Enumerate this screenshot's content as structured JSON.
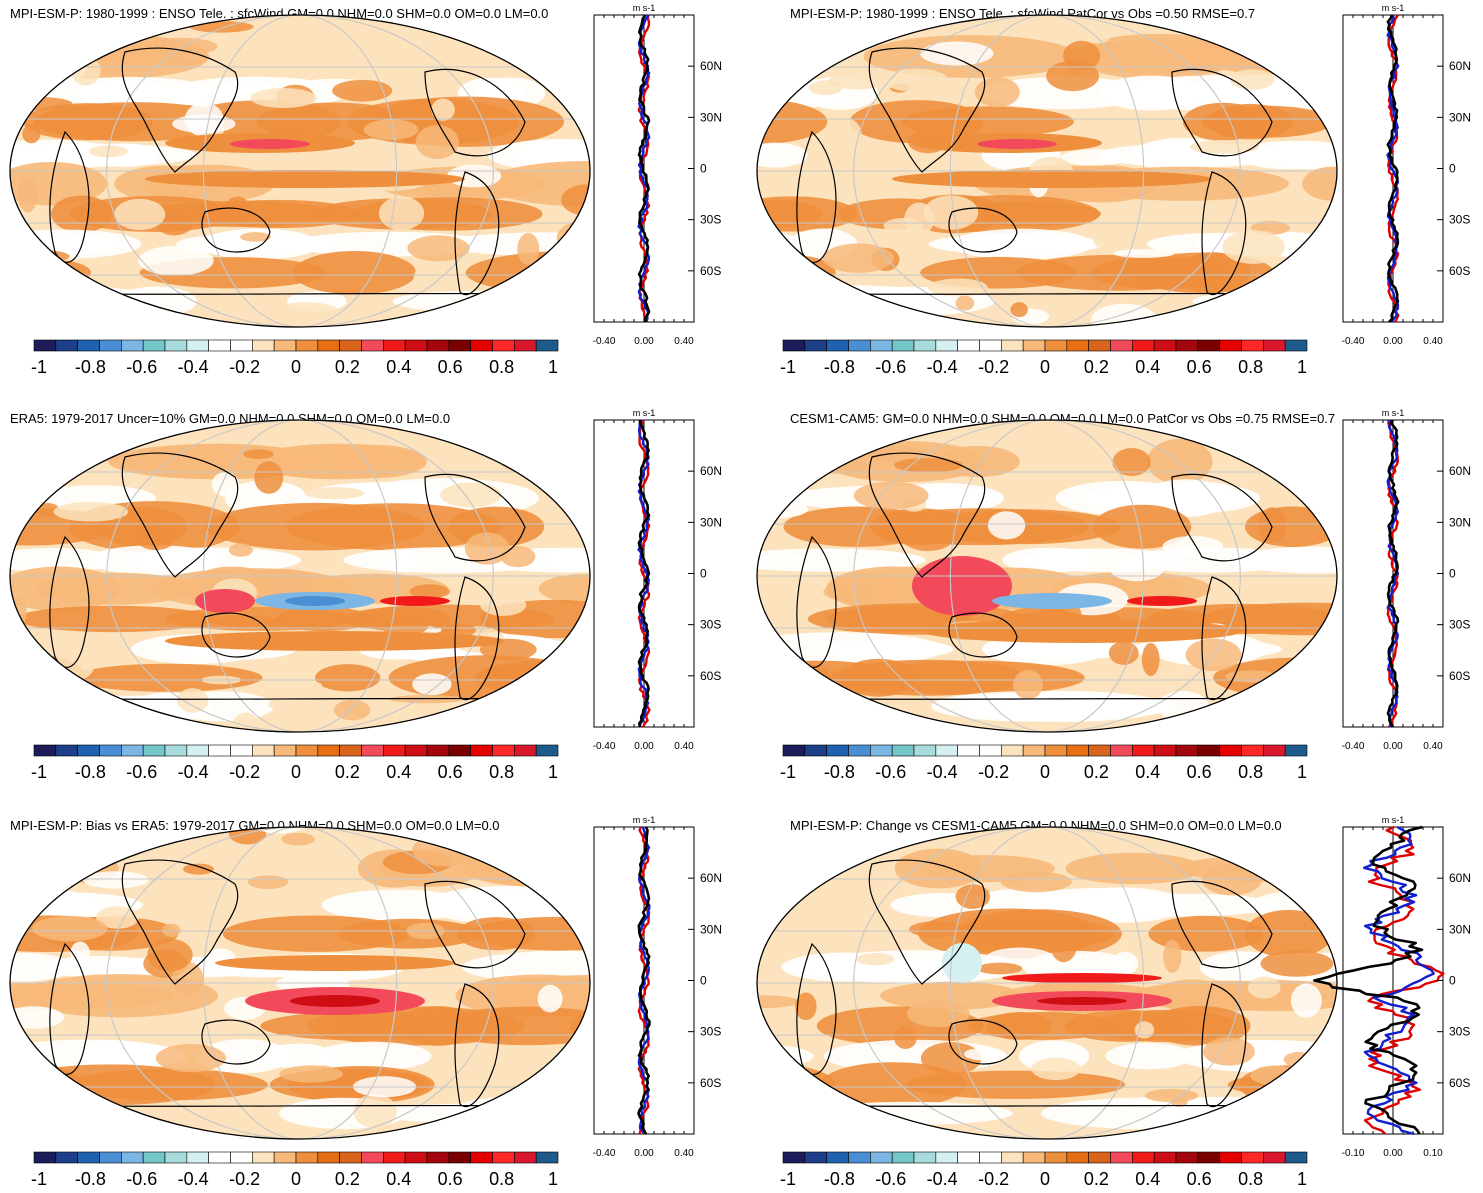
{
  "colorbar": {
    "labels": [
      "-1",
      "-0.8",
      "-0.6",
      "-0.4",
      "-0.2",
      "0",
      "0.2",
      "0.4",
      "0.6",
      "0.8",
      "1"
    ],
    "colors": [
      "#1c1c5a",
      "#1d3f8a",
      "#1f63b0",
      "#4a8fd4",
      "#7cb6e4",
      "#74c6c9",
      "#a8dcdc",
      "#d5f0f0",
      "#ffffff",
      "#ffffff",
      "#fce3bd",
      "#f7b97a",
      "#ee8f3e",
      "#e66f16",
      "#d9651c",
      "#f24a5a",
      "#f01a1a",
      "#cf0d14",
      "#a3050c",
      "#7a0000",
      "#e50000",
      "#ff2828",
      "#d9182e",
      "#1e5a8a"
    ]
  },
  "profile_axis": {
    "unit": "m s-1",
    "lat_ticks": [
      "60N",
      "30N",
      "0",
      "30S",
      "60S"
    ],
    "x_ticks_default": [
      "-0.40",
      "0.00",
      "0.40"
    ],
    "x_ticks_change": [
      "-0.10",
      "0.00",
      "0.10"
    ]
  },
  "panels": [
    {
      "id": "mpi-model",
      "title": "MPI-ESM-P: 1980-1999 : ENSO Tele. : sfcWind GM=0.0 NHM=0.0 SHM=0.0 OM=0.0 LM=0.0",
      "pattern": "model"
    },
    {
      "id": "mpi-model-patcor",
      "title": "MPI-ESM-P: 1980-1999 : ENSO Tele. : sfcWind PatCor vs Obs =0.50 RMSE=0.7",
      "pattern": "model"
    },
    {
      "id": "era5-obs",
      "title": "ERA5: 1979-2017 Uncer=10% GM=0.0 NHM=0.0 SHM=0.0 OM=0.0 LM=0.0",
      "pattern": "obs"
    },
    {
      "id": "cesm-model",
      "title": "CESM1-CAM5: GM=0.0 NHM=0.0 SHM=0.0 OM=0.0 LM=0.0 PatCor vs Obs =0.75 RMSE=0.7",
      "pattern": "cesm"
    },
    {
      "id": "mpi-bias",
      "title": "MPI-ESM-P: Bias vs ERA5: 1979-2017 GM=0.0 NHM=0.0 SHM=0.0 OM=0.0 LM=0.0",
      "pattern": "bias"
    },
    {
      "id": "mpi-change",
      "title": "MPI-ESM-P: Change vs CESM1-CAM5 GM=0.0 NHM=0.0 SHM=0.0 OM=0.0 LM=0.0",
      "pattern": "change"
    }
  ],
  "chart_data": {
    "type": "heatmap",
    "map_projection": "Robinson (Pacific-centred)",
    "value_range": [
      -1,
      1
    ],
    "profile_lines": [
      "red",
      "blue",
      "black"
    ],
    "profile_lat_range": [
      -90,
      90
    ]
  }
}
